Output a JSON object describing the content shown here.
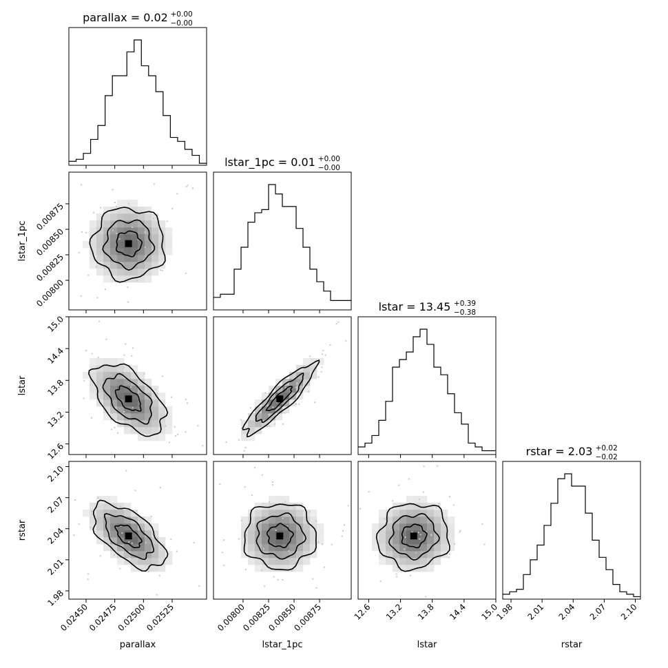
{
  "chart_data": {
    "type": "corner",
    "parameters": [
      "parallax",
      "lstar_1pc",
      "lstar",
      "rstar"
    ],
    "titles": [
      {
        "param": "parallax",
        "label": "parallax = 0.02",
        "sup": "+0.00",
        "sub": "−0.00"
      },
      {
        "param": "lstar_1pc",
        "label": "lstar_1pc = 0.01",
        "sup": "+0.00",
        "sub": "−0.00"
      },
      {
        "param": "lstar",
        "label": "lstar = 13.45",
        "sup": "+0.39",
        "sub": "−0.38"
      },
      {
        "param": "rstar",
        "label": "rstar = 2.03",
        "sup": "+0.02",
        "sub": "−0.02"
      }
    ],
    "axes": {
      "parallax": {
        "range": [
          0.02435,
          0.02555
        ],
        "ticks": [
          0.0245,
          0.02475,
          0.025,
          0.02525
        ],
        "tick_labels": [
          "0.02450",
          "0.02475",
          "0.02500",
          "0.02525"
        ]
      },
      "lstar_1pc": {
        "range": [
          0.00771,
          0.00906
        ],
        "ticks": [
          0.008,
          0.00825,
          0.0085,
          0.00875
        ],
        "tick_labels": [
          "0.00800",
          "0.00825",
          "0.00850",
          "0.00875"
        ]
      },
      "lstar": {
        "range": [
          12.4,
          15.0
        ],
        "ticks": [
          12.6,
          13.2,
          13.8,
          14.4,
          15.0
        ],
        "tick_labels": [
          "12.6",
          "13.2",
          "13.8",
          "14.4",
          "15.0"
        ]
      },
      "rstar": {
        "range": [
          1.972,
          2.105
        ],
        "ticks": [
          1.98,
          2.01,
          2.04,
          2.07,
          2.1
        ],
        "tick_labels": [
          "1.98",
          "2.01",
          "2.04",
          "2.07",
          "2.10"
        ]
      }
    },
    "histograms": {
      "parallax": [
        2,
        3,
        6,
        13,
        20,
        35,
        45,
        45,
        57,
        63,
        50,
        45,
        37,
        25,
        14,
        12,
        8,
        5,
        1
      ],
      "lstar_1pc": [
        4,
        5,
        5,
        13,
        20,
        28,
        31,
        32,
        40,
        37,
        33,
        33,
        26,
        20,
        13,
        9,
        6,
        3,
        3,
        3
      ],
      "lstar": [
        2,
        3,
        5,
        9,
        14,
        23,
        25,
        27,
        31,
        33,
        29,
        23,
        21,
        16,
        11,
        8,
        3,
        2,
        1,
        1
      ],
      "rstar": [
        2,
        3,
        4,
        10,
        16,
        22,
        30,
        39,
        49,
        51,
        46,
        46,
        35,
        24,
        17,
        12,
        6,
        3,
        2,
        1
      ]
    },
    "correlations": {
      "lstar_1pc|parallax": 0.0,
      "lstar|parallax": -0.55,
      "lstar|lstar_1pc": 0.9,
      "rstar|parallax": -0.6,
      "rstar|lstar_1pc": 0.0,
      "rstar|lstar": 0.05
    },
    "centers": {
      "parallax": 0.02487,
      "lstar_1pc": 0.00836,
      "lstar": 13.45,
      "rstar": 2.033
    },
    "sigmas": {
      "parallax": 0.00018,
      "lstar_1pc": 0.0002,
      "lstar": 0.38,
      "rstar": 0.018
    }
  }
}
